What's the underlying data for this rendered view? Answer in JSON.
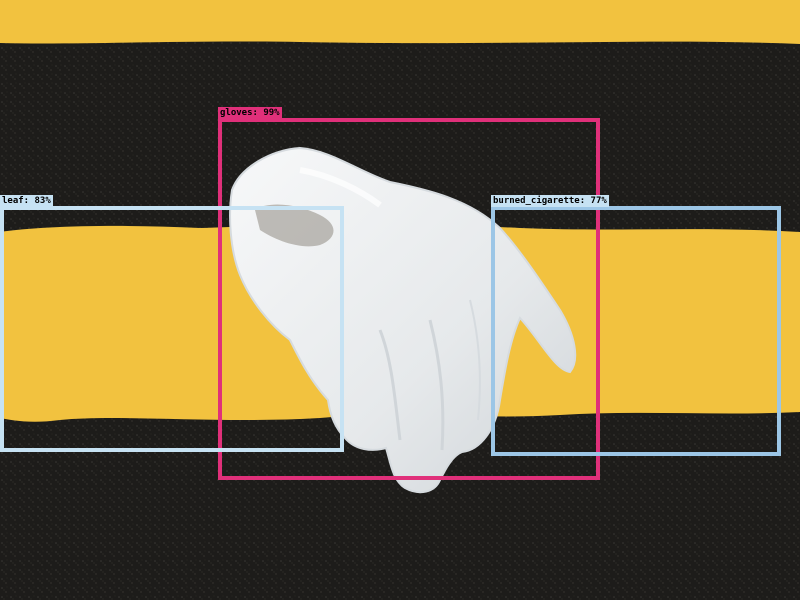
{
  "colors": {
    "asphalt": "#1d1c1a",
    "road_line": "#f2c23f",
    "glove": "#eef0f1",
    "pink": "#e0307a",
    "light_blue": "#c6e2f3",
    "mid_blue": "#9cc6e6"
  },
  "detections": [
    {
      "label": "gloves: 99%",
      "color": "#e0307a"
    },
    {
      "label": "leaf: 83%",
      "color": "#c6e2f3"
    },
    {
      "label": "burned_cigarette: 77%",
      "color": "#9cc6e6"
    }
  ]
}
